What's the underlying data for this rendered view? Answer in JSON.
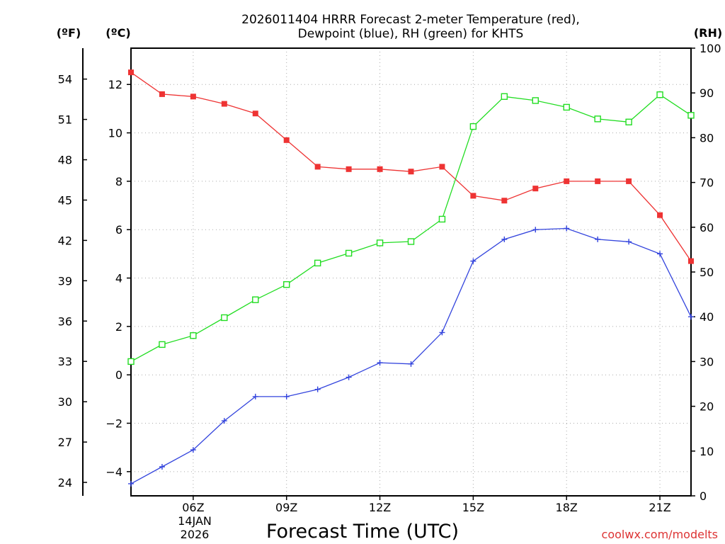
{
  "colors": {
    "temperature": "#ee3333",
    "dewpoint": "#3344dd",
    "rh": "#22dd22",
    "grid": "#aaaaaa",
    "axis": "#000000",
    "credit": "#dd3333"
  },
  "chart_data": {
    "type": "line",
    "title_line1": "2026011404 HRRR Forecast 2-meter Temperature (red),",
    "title_line2": "Dewpoint (blue), RH (green) for KHTS",
    "xlabel": "Forecast Time (UTC)",
    "credit": "coolwx.com/modelts",
    "unit_f": "(ºF)",
    "unit_c": "(ºC)",
    "unit_rh": "(RH)",
    "date_line1": "14JAN",
    "date_line2": "2026",
    "x": [
      4,
      5,
      6,
      7,
      8,
      9,
      10,
      11,
      12,
      13,
      14,
      15,
      16,
      17,
      18,
      19,
      20,
      21,
      22
    ],
    "xlim": [
      4,
      22
    ],
    "xticks": [
      {
        "value": 6,
        "label": "06Z"
      },
      {
        "value": 9,
        "label": "09Z"
      },
      {
        "value": 12,
        "label": "12Z"
      },
      {
        "value": 15,
        "label": "15Z"
      },
      {
        "value": 18,
        "label": "18Z"
      },
      {
        "value": 21,
        "label": "21Z"
      }
    ],
    "ylim_c": [
      -5,
      13.5
    ],
    "yticks_c": [
      "-4",
      "-2",
      "0",
      "2",
      "4",
      "6",
      "8",
      "10",
      "12"
    ],
    "yticks_f": [
      "24",
      "27",
      "30",
      "33",
      "36",
      "39",
      "42",
      "45",
      "48",
      "51",
      "54"
    ],
    "ylim_rh": [
      0,
      100
    ],
    "yticks_rh": [
      "0",
      "10",
      "20",
      "30",
      "40",
      "50",
      "60",
      "70",
      "80",
      "90",
      "100"
    ],
    "series": [
      {
        "name": "Temperature",
        "axis": "c",
        "marker": "square-filled",
        "color_key": "temperature",
        "values": [
          12.5,
          11.6,
          11.5,
          11.2,
          10.8,
          9.7,
          8.6,
          8.5,
          8.5,
          8.4,
          8.6,
          7.4,
          7.2,
          7.7,
          8.0,
          8.0,
          8.0,
          6.6,
          4.7
        ]
      },
      {
        "name": "Dewpoint",
        "axis": "c",
        "marker": "plus",
        "color_key": "dewpoint",
        "values": [
          -4.5,
          -3.8,
          -3.1,
          -1.9,
          -0.9,
          -0.9,
          -0.6,
          -0.1,
          0.5,
          0.45,
          1.75,
          4.7,
          5.6,
          6.0,
          6.05,
          5.6,
          5.5,
          5.0,
          2.4
        ]
      },
      {
        "name": "RH",
        "axis": "rh",
        "marker": "square-open",
        "color_key": "rh",
        "values": [
          30.0,
          33.8,
          35.8,
          39.8,
          43.8,
          47.2,
          52.0,
          54.2,
          56.5,
          56.8,
          61.8,
          82.5,
          89.2,
          88.3,
          86.8,
          84.2,
          83.5,
          89.6,
          85.0
        ]
      }
    ]
  }
}
